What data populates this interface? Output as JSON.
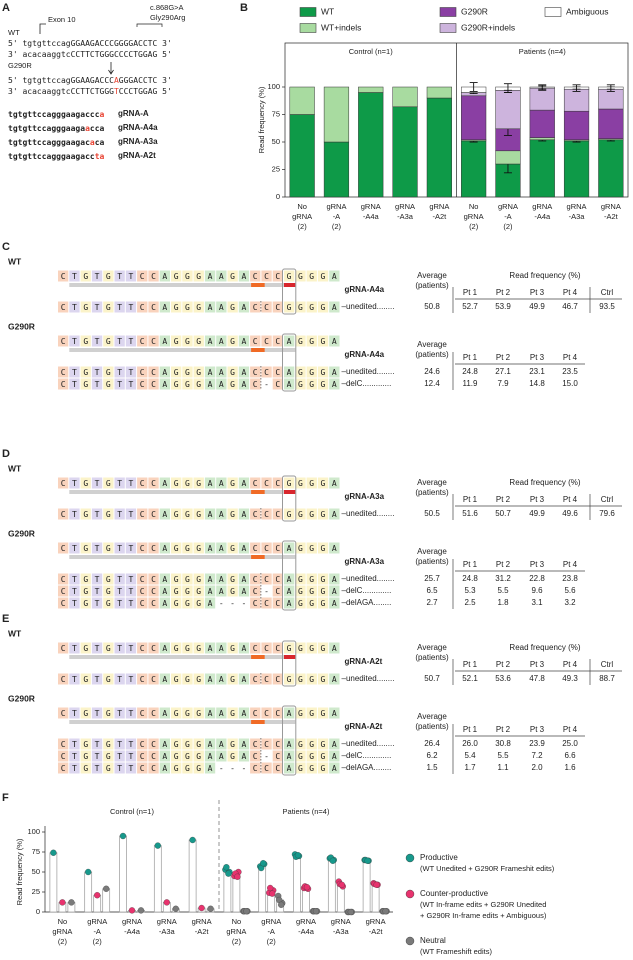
{
  "panel_a": {
    "label": "A",
    "mutation": "c.868G>A",
    "protein": "Gly290Arg",
    "exon": "Exon 10",
    "alleles": [
      {
        "name": "WT",
        "strands": [
          [
            {
              "text": "5' tgtgttccagGGAAGACCCGGGGACCTC 3'"
            }
          ],
          [
            {
              "text": "3' acacaaggtcCCTTCTGGGCCCCTGGAG 5'"
            }
          ]
        ]
      },
      {
        "name": "G290R",
        "strands": [
          [
            {
              "text": "5' tgtgttccagGGAAGACCC"
            },
            {
              "text": "A",
              "color": "#e8402f"
            },
            {
              "text": "GGGACCTC 3'"
            }
          ],
          [
            {
              "text": "3' acacaaggtcCCTTCTGGG"
            },
            {
              "text": "T",
              "color": "#e8402f"
            },
            {
              "text": "CCCTGGAG 5'"
            }
          ]
        ]
      }
    ],
    "grnas": [
      {
        "name": "gRNA-A",
        "sequence": [
          {
            "text": "tgtgttccagggaagaccc"
          },
          {
            "text": "a",
            "color": "#e8402f"
          }
        ]
      },
      {
        "name": "gRNA-A4a",
        "sequence": [
          {
            "text": "tgtgttccagggaaga"
          },
          {
            "text": "a",
            "color": "#e8402f"
          },
          {
            "text": "cca"
          }
        ]
      },
      {
        "name": "gRNA-A3a",
        "sequence": [
          {
            "text": "tgtgttccagggaagac"
          },
          {
            "text": "a",
            "color": "#e8402f"
          },
          {
            "text": "ca"
          }
        ]
      },
      {
        "name": "gRNA-A2t",
        "sequence": [
          {
            "text": "tgtgttccagggaagacc"
          },
          {
            "text": "ta",
            "color": "#e8402f"
          }
        ]
      }
    ]
  },
  "chart_data": [
    {
      "type": "stacked_bar",
      "panel_label": "B",
      "ylabel": "Read frequency (%)",
      "groups": [
        "Control (n=1)",
        "Patients (n=4)"
      ],
      "categories": [
        [
          "No",
          "gRNA",
          "(2)"
        ],
        [
          "gRNA",
          "-A",
          "(2)"
        ],
        [
          "gRNA",
          "-A4a"
        ],
        [
          "gRNA",
          "-A3a"
        ],
        [
          "gRNA",
          "-A2t"
        ],
        [
          "No",
          "gRNA",
          "(2)"
        ],
        [
          "gRNA",
          "-A",
          "(2)"
        ],
        [
          "gRNA",
          "-A4a"
        ],
        [
          "gRNA",
          "-A3a"
        ],
        [
          "gRNA",
          "-A2t"
        ]
      ],
      "ylim": [
        0,
        140
      ],
      "yticks": [
        0,
        25,
        50,
        75,
        100
      ],
      "series": [
        {
          "name": "WT",
          "color": "#0e9a48",
          "values": [
            75,
            50,
            95,
            82,
            90,
            51,
            30,
            52,
            51,
            52
          ],
          "errors": [
            null,
            null,
            null,
            null,
            null,
            1,
            8,
            1,
            1,
            1
          ]
        },
        {
          "name": "WT+indels",
          "color": "#a8dba0",
          "values": [
            25,
            50,
            5,
            18,
            10,
            1,
            12,
            2,
            1,
            1
          ],
          "errors": [
            null,
            null,
            null,
            null,
            null,
            null,
            null,
            null,
            null,
            null
          ]
        },
        {
          "name": "G290R",
          "color": "#8a3fa3",
          "values": [
            0,
            0,
            0,
            0,
            0,
            40,
            20,
            25,
            26,
            27
          ],
          "errors": [
            null,
            null,
            null,
            null,
            null,
            null,
            6,
            null,
            null,
            null
          ]
        },
        {
          "name": "G290R+indels",
          "color": "#cdb4dd",
          "values": [
            0,
            0,
            0,
            0,
            0,
            3,
            35,
            20,
            20,
            18
          ],
          "errors": [
            null,
            null,
            null,
            null,
            null,
            1,
            2,
            2,
            2,
            2
          ]
        },
        {
          "name": "Ambiguous",
          "color": "#ffffff",
          "values": [
            0,
            0,
            0,
            0,
            0,
            5,
            3,
            1,
            2,
            2
          ],
          "errors": [
            null,
            null,
            null,
            null,
            null,
            4,
            3,
            2,
            2,
            2
          ]
        }
      ]
    },
    {
      "type": "bar",
      "panel_label": "F",
      "ylabel": "Read frequency (%)",
      "groups": [
        "Control (n=1)",
        "Patients (n=4)"
      ],
      "categories": [
        [
          "No",
          "gRNA",
          "(2)"
        ],
        [
          "gRNA",
          "-A",
          "(2)"
        ],
        [
          "gRNA",
          "-A4a"
        ],
        [
          "gRNA",
          "-A3a"
        ],
        [
          "gRNA",
          "-A2t"
        ],
        [
          "No",
          "gRNA",
          "(2)"
        ],
        [
          "gRNA",
          "-A",
          "(2)"
        ],
        [
          "gRNA",
          "-A4a"
        ],
        [
          "gRNA",
          "-A3a"
        ],
        [
          "gRNA",
          "-A2t"
        ]
      ],
      "ylim": [
        0,
        100
      ],
      "yticks": [
        0,
        25,
        50,
        75,
        100
      ],
      "series": [
        {
          "name": "Productive",
          "description": [
            "(WT Unedited + G290R Frameshit edits)"
          ],
          "color": "#17998c",
          "values": [
            74,
            50,
            95,
            83,
            90,
            51,
            58,
            70,
            66,
            64
          ],
          "points": [
            null,
            null,
            null,
            null,
            null,
            [
              53,
              50,
              56,
              48
            ],
            [
              57,
              60,
              55,
              61
            ],
            [
              72,
              70,
              69,
              71
            ],
            [
              67,
              65,
              68,
              64
            ],
            [
              65,
              64,
              65,
              64
            ]
          ]
        },
        {
          "name": "Counter-productive",
          "description": [
            "(WT In-frame edits + G290R Unedited",
            "+ G290R In-frame edits + Ambiguous)"
          ],
          "color": "#e8336e",
          "values": [
            12,
            21,
            2,
            12,
            5,
            47,
            26,
            30,
            35,
            34
          ],
          "points": [
            null,
            null,
            null,
            null,
            null,
            [
              45,
              50,
              48,
              44
            ],
            [
              24,
              27,
              30,
              23
            ],
            [
              30,
              29,
              32,
              31
            ],
            [
              38,
              32,
              35,
              34
            ],
            [
              36,
              34,
              35,
              34
            ]
          ]
        },
        {
          "name": "Neutral",
          "description": [
            "(WT Frameshift edits)"
          ],
          "color": "#7a7a7a",
          "values": [
            12,
            29,
            2,
            4,
            4,
            1,
            15,
            1,
            0,
            1
          ],
          "points": [
            null,
            null,
            null,
            null,
            null,
            [
              1,
              1,
              1,
              1
            ],
            [
              20,
              11,
              15,
              9
            ],
            [
              1,
              1,
              1,
              1
            ],
            [
              0,
              0,
              0,
              0
            ],
            [
              1,
              1,
              1,
              1
            ]
          ]
        }
      ]
    }
  ],
  "panel_c": {
    "label": "C",
    "blocks": [
      {
        "allele": "WT",
        "guide": "gRNA-A4a",
        "reference": "CTGTGTTCCAGGGAAGACCCGGGGA",
        "header": {
          "title": "Read frequency (%)",
          "average": [
            "Average",
            "(patients)"
          ],
          "columns": [
            "Pt 1",
            "Pt 2",
            "Pt 3",
            "Pt 4",
            "Ctrl"
          ]
        },
        "rows": [
          {
            "sequence": "CTGTGTTCCAGGGAAGACCCGGGGA",
            "label": "–unedited........",
            "average": "50.8",
            "values": [
              "52.7",
              "53.9",
              "49.9",
              "46.7",
              "93.5"
            ]
          }
        ]
      },
      {
        "allele": "G290R",
        "guide": "gRNA-A4a",
        "reference": "CTGTGTTCCAGGGAAGACCCAGGGA",
        "header": {
          "average": [
            "Average",
            "(patients)"
          ],
          "columns": [
            "Pt 1",
            "Pt 2",
            "Pt 3",
            "Pt 4"
          ]
        },
        "rows": [
          {
            "sequence": "CTGTGTTCCAGGGAAGACCCAGGGA",
            "label": "–unedited........",
            "average": "24.6",
            "values": [
              "24.8",
              "27.1",
              "23.1",
              "23.5"
            ]
          },
          {
            "sequence": "CTGTGTTCCAGGGAAGAC-CAGGGA",
            "label": "–delC.............",
            "average": "12.4",
            "values": [
              "11.9",
              "7.9",
              "14.8",
              "15.0"
            ]
          }
        ]
      }
    ]
  },
  "panel_d": {
    "label": "D",
    "blocks": [
      {
        "allele": "WT",
        "guide": "gRNA-A3a",
        "reference": "CTGTGTTCCAGGGAAGACCCGGGGA",
        "header": {
          "title": "Read frequency (%)",
          "average": [
            "Average",
            "(patients)"
          ],
          "columns": [
            "Pt 1",
            "Pt 2",
            "Pt 3",
            "Pt 4",
            "Ctrl"
          ]
        },
        "rows": [
          {
            "sequence": "CTGTGTTCCAGGGAAGACCCGGGGA",
            "label": "–unedited........",
            "average": "50.5",
            "values": [
              "51.6",
              "50.7",
              "49.9",
              "49.6",
              "79.6"
            ]
          }
        ]
      },
      {
        "allele": "G290R",
        "guide": "gRNA-A3a",
        "reference": "CTGTGTTCCAGGGAAGACCCAGGGA",
        "header": {
          "average": [
            "Average",
            "(patients)"
          ],
          "columns": [
            "Pt 1",
            "Pt 2",
            "Pt 3",
            "Pt 4"
          ]
        },
        "rows": [
          {
            "sequence": "CTGTGTTCCAGGGAAGACCCAGGGA",
            "label": "–unedited........",
            "average": "25.7",
            "values": [
              "24.8",
              "31.2",
              "22.8",
              "23.8"
            ]
          },
          {
            "sequence": "CTGTGTTCCAGGGAAGAC-CAGGGA",
            "label": "–delC.............",
            "average": "6.5",
            "values": [
              "5.3",
              "5.5",
              "9.6",
              "5.6"
            ]
          },
          {
            "sequence": "CTGTGTTCCAGGGA---CCCAGGGA",
            "label": "–delAGA........",
            "average": "2.7",
            "values": [
              "2.5",
              "1.8",
              "3.1",
              "3.2"
            ]
          }
        ]
      }
    ]
  },
  "panel_e": {
    "label": "E",
    "blocks": [
      {
        "allele": "WT",
        "guide": "gRNA-A2t",
        "reference": "CTGTGTTCCAGGGAAGACCCGGGGA",
        "header": {
          "title": "Read frequency (%)",
          "average": [
            "Average",
            "(patients)"
          ],
          "columns": [
            "Pt 1",
            "Pt 2",
            "Pt 3",
            "Pt 4",
            "Ctrl"
          ]
        },
        "rows": [
          {
            "sequence": "CTGTGTTCCAGGGAAGACCCGGGGA",
            "label": "–unedited........",
            "average": "50.7",
            "values": [
              "52.1",
              "53.6",
              "47.8",
              "49.3",
              "88.7"
            ]
          }
        ]
      },
      {
        "allele": "G290R",
        "guide": "gRNA-A2t",
        "reference": "CTGTGTTCCAGGGAAGACCCAGGGA",
        "header": {
          "average": [
            "Average",
            "(patients)"
          ],
          "columns": [
            "Pt 1",
            "Pt 2",
            "Pt 3",
            "Pt 4"
          ]
        },
        "rows": [
          {
            "sequence": "CTGTGTTCCAGGGAAGACCCAGGGA",
            "label": "–unedited........",
            "average": "26.4",
            "values": [
              "26.0",
              "30.8",
              "23.9",
              "25.0"
            ]
          },
          {
            "sequence": "CTGTGTTCCAGGGAAGAC-CAGGGA",
            "label": "–delC.............",
            "average": "6.2",
            "values": [
              "5.4",
              "5.5",
              "7.2",
              "6.6"
            ]
          },
          {
            "sequence": "CTGTGTTCCAGGGA---CCCAGGGA",
            "label": "–delAGA........",
            "average": "1.5",
            "values": [
              "1.7",
              "1.1",
              "2.0",
              "1.6"
            ]
          }
        ]
      }
    ]
  }
}
